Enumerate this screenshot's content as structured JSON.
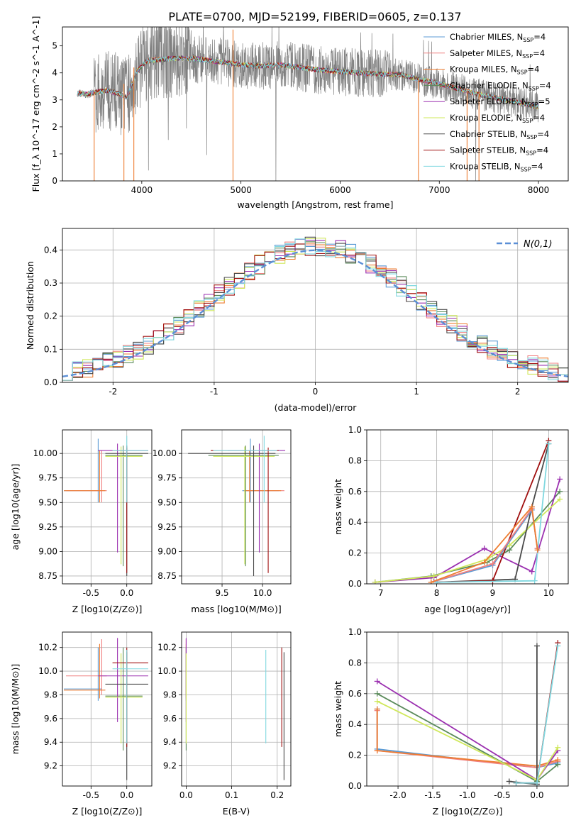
{
  "figure_title": "PLATE=0700, MJD=52199, FIBERID=0605, z=0.137",
  "colors": {
    "Chabrier MILES": "#5b9bd5",
    "Salpeter MILES": "#f08080",
    "Kroupa MILES": "#ee7d31",
    "Chabrier ELODIE": "#5a8a5a",
    "Salpeter ELODIE": "#9b30b0",
    "Kroupa ELODIE": "#cfe85a",
    "Chabrier STELIB": "#4a4a4a",
    "Salpeter STELIB": "#a01010",
    "Kroupa STELIB": "#80d8e0",
    "normal": "#5b8fd6",
    "data_spectrum": "#808080"
  },
  "chart_data": [
    {
      "id": "spectrum",
      "type": "line",
      "xlabel": "wavelength [Angstrom, rest frame]",
      "ylabel": "Flux [f_λ 10^-17 erg cm^-2 s^-1 A^-1]",
      "xlim": [
        3200,
        8300
      ],
      "ylim": [
        0,
        5.7
      ],
      "xticks": [
        4000,
        5000,
        6000,
        7000,
        8000
      ],
      "yticks": [
        0,
        1,
        2,
        3,
        4,
        5
      ],
      "grid": false,
      "legend_position": "right",
      "legend": [
        {
          "name": "Chabrier MILES",
          "nssp": "4"
        },
        {
          "name": "Salpeter MILES",
          "nssp": "4"
        },
        {
          "name": "Kroupa MILES",
          "nssp": "4"
        },
        {
          "name": "Chabrier ELODIE",
          "nssp": "4"
        },
        {
          "name": "Salpeter ELODIE",
          "nssp": "5"
        },
        {
          "name": "Kroupa ELODIE",
          "nssp": "4"
        },
        {
          "name": "Chabrier STELIB",
          "nssp": "4"
        },
        {
          "name": "Salpeter STELIB",
          "nssp": "4"
        },
        {
          "name": "Kroupa STELIB",
          "nssp": "4"
        }
      ],
      "model_continuum": {
        "x": [
          3350,
          3450,
          3550,
          3650,
          3750,
          3850,
          3950,
          4050,
          4200,
          4400,
          4600,
          4800,
          5000,
          5200,
          5400,
          5600,
          5800,
          6000,
          6200,
          6400,
          6600,
          6800,
          7000,
          7200,
          7400,
          7600,
          7800,
          8000
        ],
        "y": [
          3.25,
          3.2,
          3.3,
          3.35,
          3.25,
          3.1,
          4.05,
          4.45,
          4.5,
          4.55,
          4.5,
          4.4,
          4.3,
          4.25,
          4.3,
          4.2,
          4.1,
          4.05,
          4.0,
          3.95,
          3.95,
          3.75,
          3.6,
          3.4,
          3.2,
          3.05,
          2.9,
          2.75
        ]
      }
    },
    {
      "id": "residuals",
      "type": "histogram",
      "xlabel": "(data-model)/error",
      "ylabel": "Normed distribution",
      "xlim": [
        -2.5,
        2.5
      ],
      "ylim": [
        0,
        0.465
      ],
      "xticks": [
        -2,
        -1,
        0,
        1,
        2
      ],
      "yticks": [
        0.0,
        0.1,
        0.2,
        0.3,
        0.4
      ],
      "grid": true,
      "legend_position": "top-right",
      "legend_label": "N(0,1)"
    },
    {
      "id": "age_vs_Z",
      "type": "errorbar",
      "xlabel": "Z [log10(Z/Z⊙)]",
      "ylabel": "age [log10(age/yr)]",
      "xlim": [
        -0.9,
        0.35
      ],
      "ylim": [
        8.67,
        10.24
      ],
      "xticks": [
        -0.5,
        0.0
      ],
      "yticks": [
        8.75,
        9.0,
        9.25,
        9.5,
        9.75,
        10.0
      ],
      "grid": true
    },
    {
      "id": "age_vs_mass",
      "type": "errorbar",
      "xlabel": "mass [log10(M/M⊙)]",
      "ylabel": "",
      "xlim": [
        9.0,
        10.35
      ],
      "ylim": [
        8.67,
        10.24
      ],
      "xticks": [
        9.5,
        10.0
      ],
      "yticks": [
        8.75,
        9.0,
        9.25,
        9.5,
        9.75,
        10.0
      ],
      "grid": true
    },
    {
      "id": "mass_weight_vs_age",
      "type": "line",
      "xlabel": "age [log10(age/yr)]",
      "ylabel": "mass weight",
      "xlim": [
        6.75,
        10.35
      ],
      "ylim": [
        0,
        1.0
      ],
      "xticks": [
        7,
        8,
        9,
        10
      ],
      "yticks": [
        0.0,
        0.2,
        0.4,
        0.6,
        0.8,
        1.0
      ],
      "grid": true,
      "series": [
        {
          "key": "Chabrier ELODIE",
          "x": [
            6.9,
            7.9,
            8.9,
            9.3,
            10.2
          ],
          "y": [
            0.01,
            0.05,
            0.14,
            0.22,
            0.6
          ]
        },
        {
          "key": "Salpeter ELODIE",
          "x": [
            6.9,
            7.95,
            8.85,
            9.7,
            10.2
          ],
          "y": [
            0.01,
            0.04,
            0.23,
            0.08,
            0.68
          ]
        },
        {
          "key": "Kroupa ELODIE",
          "x": [
            6.9,
            7.95,
            8.9,
            9.3,
            10.2
          ],
          "y": [
            0.01,
            0.05,
            0.16,
            0.25,
            0.55
          ]
        },
        {
          "key": "Chabrier STELIB",
          "x": [
            8.0,
            9.4,
            9.7,
            10.0
          ],
          "y": [
            0.01,
            0.03,
            0.5,
            0.91
          ]
        },
        {
          "key": "Salpeter STELIB",
          "x": [
            8.0,
            9.0,
            10.0
          ],
          "y": [
            0.01,
            0.02,
            0.93
          ]
        },
        {
          "key": "Kroupa STELIB",
          "x": [
            8.0,
            9.75,
            10.0
          ],
          "y": [
            0.01,
            0.02,
            0.91
          ]
        },
        {
          "key": "Chabrier MILES",
          "x": [
            7.9,
            9.0,
            9.7,
            9.8
          ],
          "y": [
            0.01,
            0.12,
            0.48,
            0.23
          ]
        },
        {
          "key": "Salpeter MILES",
          "x": [
            7.9,
            9.0,
            9.7,
            9.8
          ],
          "y": [
            0.01,
            0.13,
            0.49,
            0.23
          ]
        },
        {
          "key": "Kroupa MILES",
          "x": [
            7.9,
            8.85,
            9.7,
            9.8
          ],
          "y": [
            0.01,
            0.14,
            0.5,
            0.22
          ]
        }
      ]
    },
    {
      "id": "mass_vs_Z",
      "type": "errorbar",
      "xlabel": "Z [log10(Z/Z⊙)]",
      "ylabel": "mass [log10(M/M⊙)]",
      "xlim": [
        -0.9,
        0.35
      ],
      "ylim": [
        9.03,
        10.33
      ],
      "xticks": [
        -0.5,
        0.0
      ],
      "yticks": [
        9.2,
        9.4,
        9.6,
        9.8,
        10.0,
        10.2
      ],
      "grid": true
    },
    {
      "id": "mass_vs_ebv",
      "type": "errorbar",
      "xlabel": "E(B-V)",
      "ylabel": "",
      "xlim": [
        -0.01,
        0.23
      ],
      "ylim": [
        9.03,
        10.33
      ],
      "xticks": [
        0.0,
        0.1,
        0.2
      ],
      "yticks": [
        9.2,
        9.4,
        9.6,
        9.8,
        10.0,
        10.2
      ],
      "grid": true
    },
    {
      "id": "mass_weight_vs_Z",
      "type": "line",
      "xlabel": "Z [log10(Z/Z⊙)]",
      "ylabel": "mass weight",
      "xlim": [
        -2.45,
        0.45
      ],
      "ylim": [
        0,
        1.0
      ],
      "xticks": [
        -2.0,
        -1.5,
        -1.0,
        -0.5,
        0.0
      ],
      "yticks": [
        0.0,
        0.2,
        0.4,
        0.6,
        0.8,
        1.0
      ],
      "grid": true,
      "series": [
        {
          "key": "Chabrier MILES",
          "x": [
            -2.3,
            -2.3,
            0.0,
            0.3
          ],
          "y": [
            0.5,
            0.24,
            0.12,
            0.15
          ]
        },
        {
          "key": "Salpeter MILES",
          "x": [
            -2.3,
            -2.3,
            0.0,
            0.3
          ],
          "y": [
            0.49,
            0.23,
            0.12,
            0.16
          ]
        },
        {
          "key": "Kroupa MILES",
          "x": [
            -2.3,
            -2.3,
            0.0,
            0.3
          ],
          "y": [
            0.5,
            0.23,
            0.13,
            0.17
          ]
        },
        {
          "key": "Chabrier ELODIE",
          "x": [
            -2.3,
            0.0,
            0.3
          ],
          "y": [
            0.6,
            0.03,
            0.14
          ]
        },
        {
          "key": "Salpeter ELODIE",
          "x": [
            -2.3,
            0.0,
            0.3
          ],
          "y": [
            0.68,
            0.04,
            0.23
          ]
        },
        {
          "key": "Kroupa ELODIE",
          "x": [
            -2.3,
            0.0,
            0.3
          ],
          "y": [
            0.55,
            0.04,
            0.25
          ]
        },
        {
          "key": "Chabrier STELIB",
          "x": [
            -0.4,
            0.0,
            0.0
          ],
          "y": [
            0.03,
            0.01,
            0.91
          ]
        },
        {
          "key": "Salpeter STELIB",
          "x": [
            -0.3,
            0.0,
            0.3
          ],
          "y": [
            0.02,
            0.02,
            0.93
          ]
        },
        {
          "key": "Kroupa STELIB",
          "x": [
            -0.3,
            0.0,
            0.3
          ],
          "y": [
            0.02,
            0.02,
            0.91
          ]
        }
      ]
    }
  ],
  "errorbars": [
    {
      "key": "Chabrier MILES",
      "age": 9.62,
      "age_lo": 9.5,
      "age_hi": 10.15,
      "Z": -0.4,
      "Z_lo": -0.88,
      "Z_hi": -0.35,
      "mass": 9.85,
      "mass_lo": 9.75,
      "mass_hi": 10.2,
      "ebv": 0.0,
      "ebv_lo": 0.0,
      "ebv_hi": 0.0
    },
    {
      "key": "Salpeter MILES",
      "age": 9.62,
      "age_lo": 9.5,
      "age_hi": 10.03,
      "Z": -0.35,
      "Z_lo": -0.85,
      "Z_hi": -0.28,
      "mass": 9.96,
      "mass_lo": 9.8,
      "mass_hi": 10.27,
      "ebv": 0.0,
      "ebv_lo": 0.0,
      "ebv_hi": 0.0
    },
    {
      "key": "Kroupa MILES",
      "age": 9.62,
      "age_lo": 9.5,
      "age_hi": 10.03,
      "Z": -0.38,
      "Z_lo": -0.88,
      "Z_hi": -0.3,
      "mass": 9.84,
      "mass_lo": 9.77,
      "mass_hi": 10.23,
      "ebv": 0.0,
      "ebv_lo": 0.0,
      "ebv_hi": 0.0
    },
    {
      "key": "Chabrier ELODIE",
      "age": 9.98,
      "age_lo": 8.85,
      "age_hi": 10.08,
      "Z": -0.05,
      "Z_lo": -0.3,
      "Z_hi": 0.22,
      "mass": 9.79,
      "mass_lo": 9.33,
      "mass_hi": 10.2,
      "ebv": 0.0,
      "ebv_lo": 0.0,
      "ebv_hi": 0.0
    },
    {
      "key": "Salpeter ELODIE",
      "age": 10.03,
      "age_lo": 8.99,
      "age_hi": 10.1,
      "Z": -0.13,
      "Z_lo": -0.4,
      "Z_hi": 0.3,
      "mass": 9.96,
      "mass_lo": 9.57,
      "mass_hi": 10.28,
      "ebv": 0.0,
      "ebv_lo": 0.0,
      "ebv_hi": 0.0
    },
    {
      "key": "Kroupa ELODIE",
      "age": 9.97,
      "age_lo": 8.87,
      "age_hi": 10.07,
      "Z": -0.08,
      "Z_lo": -0.3,
      "Z_hi": 0.22,
      "mass": 9.78,
      "mass_lo": 9.39,
      "mass_hi": 10.15,
      "ebv": 0.0,
      "ebv_lo": 0.0,
      "ebv_hi": 0.0
    },
    {
      "key": "Chabrier STELIB",
      "age": 10.0,
      "age_lo": 8.75,
      "age_hi": 10.08,
      "Z": 0.0,
      "Z_lo": -0.3,
      "Z_hi": 0.3,
      "mass": 9.89,
      "mass_lo": 9.08,
      "mass_hi": 10.16,
      "ebv": 0.215,
      "ebv_lo": 0.215,
      "ebv_hi": 0.215
    },
    {
      "key": "Salpeter STELIB",
      "age": 10.03,
      "age_lo": 8.78,
      "age_hi": 10.06,
      "Z": 0.0,
      "Z_lo": -0.2,
      "Z_hi": 0.3,
      "mass": 10.07,
      "mass_lo": 9.36,
      "mass_hi": 10.2,
      "ebv": 0.21,
      "ebv_lo": 0.21,
      "ebv_hi": 0.21
    },
    {
      "key": "Kroupa STELIB",
      "age": 10.03,
      "age_lo": 9.5,
      "age_hi": 10.18,
      "Z": 0.0,
      "Z_lo": -0.2,
      "Z_hi": 0.3,
      "mass": 10.02,
      "mass_lo": 9.39,
      "mass_hi": 10.18,
      "ebv": 0.175,
      "ebv_lo": 0.175,
      "ebv_hi": 0.175
    }
  ]
}
